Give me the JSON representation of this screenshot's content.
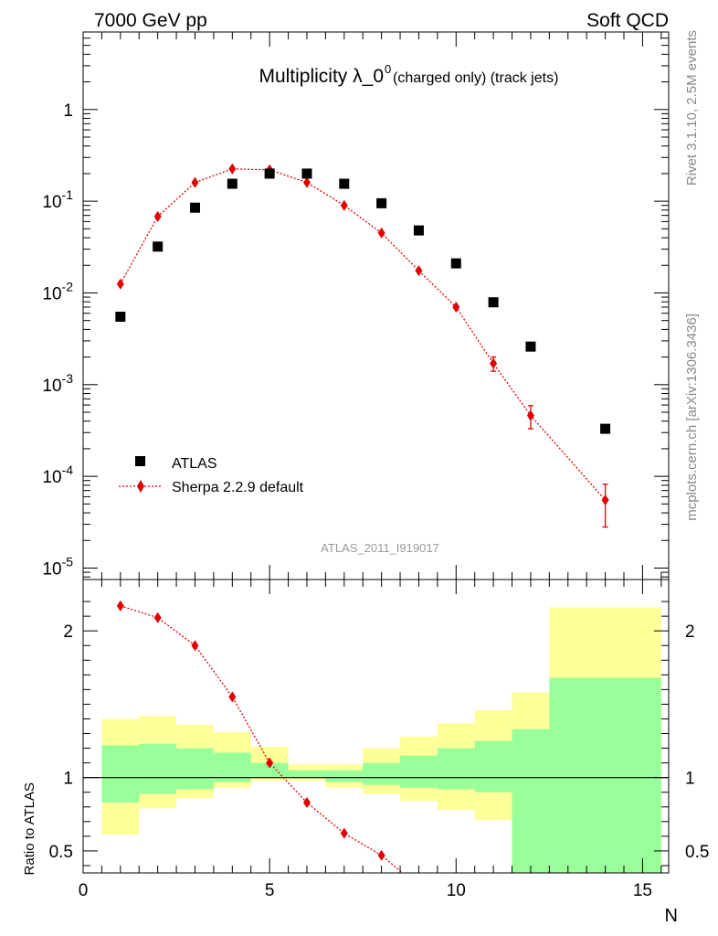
{
  "header": {
    "left": "7000 GeV pp",
    "right": "Soft QCD"
  },
  "title": {
    "main": "Multiplicity λ_0",
    "sup": "0",
    "sub": " (charged only) (track jets)"
  },
  "side_text": {
    "top": "Rivet 3.1.10,  2.5M events",
    "bottom": "mcplots.cern.ch [arXiv:1306.3436]"
  },
  "analysis_tag": "ATLAS_2011_I919017",
  "legend": {
    "atlas": "ATLAS",
    "sherpa": "Sherpa 2.2.9 default"
  },
  "colors": {
    "atlas": "#000000",
    "sherpa": "#e00000",
    "band_inner": "#99ff99",
    "band_outer": "#ffff99",
    "tag_gray": "#999999"
  },
  "chart_data": [
    {
      "type": "scatter",
      "panel": "main",
      "yscale": "log",
      "xlim": [
        0,
        15.7
      ],
      "ylim": [
        7.5e-06,
        7
      ],
      "ytick_labels": [
        "10^-5",
        "10^-4",
        "10^-3",
        "10^-2",
        "10^-1",
        "1"
      ],
      "series": [
        {
          "name": "ATLAS",
          "marker": "square",
          "x": [
            1,
            2,
            3,
            4,
            5,
            6,
            7,
            8,
            9,
            10,
            11,
            12,
            14
          ],
          "y": [
            0.0055,
            0.032,
            0.085,
            0.155,
            0.2,
            0.2,
            0.155,
            0.095,
            0.048,
            0.021,
            0.0079,
            0.0026,
            0.00033
          ]
        },
        {
          "name": "Sherpa 2.2.9 default",
          "marker": "diamond",
          "line": "dotted",
          "x": [
            1,
            2,
            3,
            4,
            5,
            6,
            7,
            8,
            9,
            10,
            11,
            12,
            14
          ],
          "y": [
            0.0125,
            0.068,
            0.16,
            0.225,
            0.22,
            0.16,
            0.09,
            0.045,
            0.0175,
            0.007,
            0.0017,
            0.00046,
            5.5e-05
          ],
          "yerr_low": [
            0,
            0,
            0,
            0,
            0,
            0,
            0,
            0,
            0,
            0,
            0.0003,
            0.00013,
            2.7e-05
          ],
          "yerr_high": [
            0,
            0,
            0,
            0,
            0,
            0,
            0,
            0,
            0,
            0,
            0.0003,
            0.00013,
            2.7e-05
          ]
        }
      ]
    },
    {
      "type": "scatter",
      "panel": "ratio",
      "ylabel": "Ratio to ATLAS",
      "xlabel": "N",
      "xlim": [
        0,
        15.7
      ],
      "ylim": [
        0.35,
        2.35
      ],
      "xtick_labels": [
        "0",
        "5",
        "10",
        "15"
      ],
      "ytick_labels": [
        "0.5",
        "1",
        "2"
      ],
      "bands": {
        "edges": [
          0.5,
          1.5,
          2.5,
          3.5,
          4.5,
          5.5,
          6.5,
          7.5,
          8.5,
          9.5,
          10.5,
          11.5,
          12.5,
          15.5
        ],
        "inner_low": [
          0.83,
          0.89,
          0.92,
          0.97,
          1.0,
          1.0,
          0.97,
          0.95,
          0.93,
          0.92,
          0.9,
          0.35,
          0.35
        ],
        "inner_high": [
          1.22,
          1.23,
          1.2,
          1.17,
          1.1,
          1.05,
          1.05,
          1.1,
          1.15,
          1.2,
          1.25,
          1.33,
          1.68
        ],
        "outer_low": [
          0.61,
          0.79,
          0.86,
          0.93,
          0.98,
          0.98,
          0.93,
          0.89,
          0.84,
          0.78,
          0.71,
          0.35,
          0.35
        ],
        "outer_high": [
          1.4,
          1.42,
          1.36,
          1.31,
          1.21,
          1.09,
          1.09,
          1.2,
          1.28,
          1.37,
          1.46,
          1.58,
          2.16
        ]
      },
      "series": [
        {
          "name": "Sherpa 2.2.9 default",
          "marker": "diamond",
          "line": "dotted",
          "x": [
            1,
            2,
            3,
            4,
            5,
            6,
            7,
            8
          ],
          "y": [
            2.17,
            2.09,
            1.9,
            1.55,
            1.1,
            0.83,
            0.62,
            0.47
          ]
        }
      ]
    }
  ]
}
